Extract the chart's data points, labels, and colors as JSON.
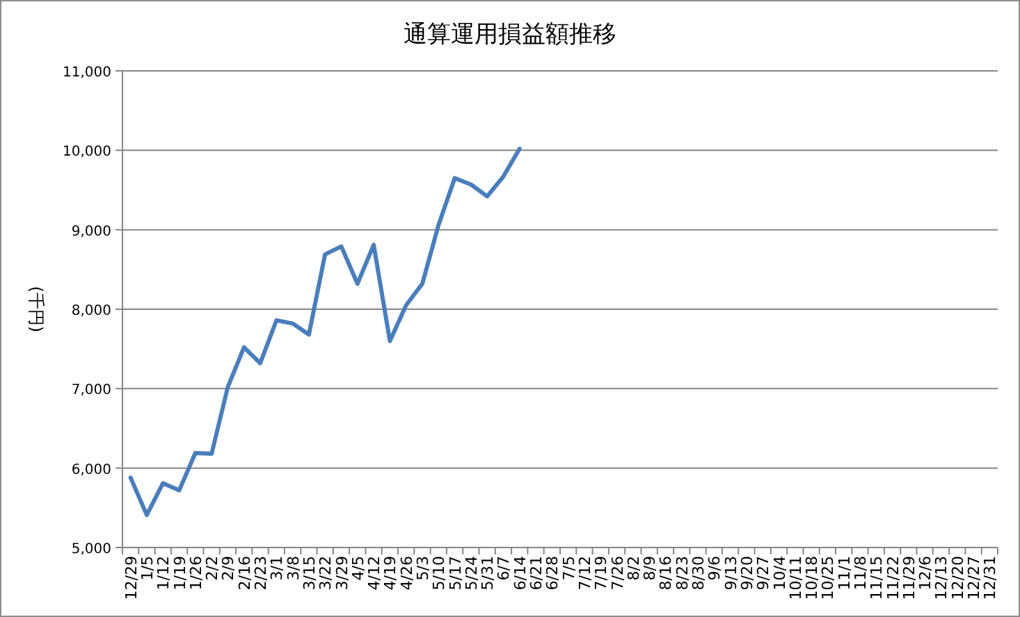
{
  "chart_data": {
    "type": "line",
    "title": "通算運用損益額推移",
    "ylabel": "(千円)",
    "categories": [
      "12/29",
      "1/5",
      "1/12",
      "1/19",
      "1/26",
      "2/2",
      "2/9",
      "2/16",
      "2/23",
      "3/1",
      "3/8",
      "3/15",
      "3/22",
      "3/29",
      "4/5",
      "4/12",
      "4/19",
      "4/26",
      "5/3",
      "5/10",
      "5/17",
      "5/24",
      "5/31",
      "6/7",
      "6/14",
      "6/21",
      "6/28",
      "7/5",
      "7/12",
      "7/19",
      "7/26",
      "8/2",
      "8/9",
      "8/16",
      "8/23",
      "8/30",
      "9/6",
      "9/13",
      "9/20",
      "9/27",
      "10/4",
      "10/11",
      "10/18",
      "10/25",
      "11/1",
      "11/8",
      "11/15",
      "11/22",
      "11/29",
      "12/6",
      "12/13",
      "12/20",
      "12/27",
      "12/31"
    ],
    "series": [
      {
        "color": "#4a7ebb",
        "values": [
          5880,
          5410,
          5810,
          5720,
          6190,
          6180,
          7020,
          7520,
          7320,
          7860,
          7820,
          7680,
          8690,
          8790,
          8320,
          8810,
          7600,
          8050,
          8320,
          9060,
          9650,
          9570,
          9420,
          9670,
          10020,
          null,
          null,
          null,
          null,
          null,
          null,
          null,
          null,
          null,
          null,
          null,
          null,
          null,
          null,
          null,
          null,
          null,
          null,
          null,
          null,
          null,
          null,
          null,
          null,
          null,
          null,
          null,
          null,
          null
        ]
      }
    ],
    "ylim": [
      5000,
      11000
    ],
    "yticks": [
      {
        "value": 5000,
        "label": "5,000"
      },
      {
        "value": 6000,
        "label": "6,000"
      },
      {
        "value": 7000,
        "label": "7,000"
      },
      {
        "value": 8000,
        "label": "8,000"
      },
      {
        "value": 9000,
        "label": "9,000"
      },
      {
        "value": 10000,
        "label": "10,000"
      },
      {
        "value": 11000,
        "label": "11,000"
      }
    ],
    "grid": "y",
    "marker": "none",
    "line_style": "solid"
  }
}
